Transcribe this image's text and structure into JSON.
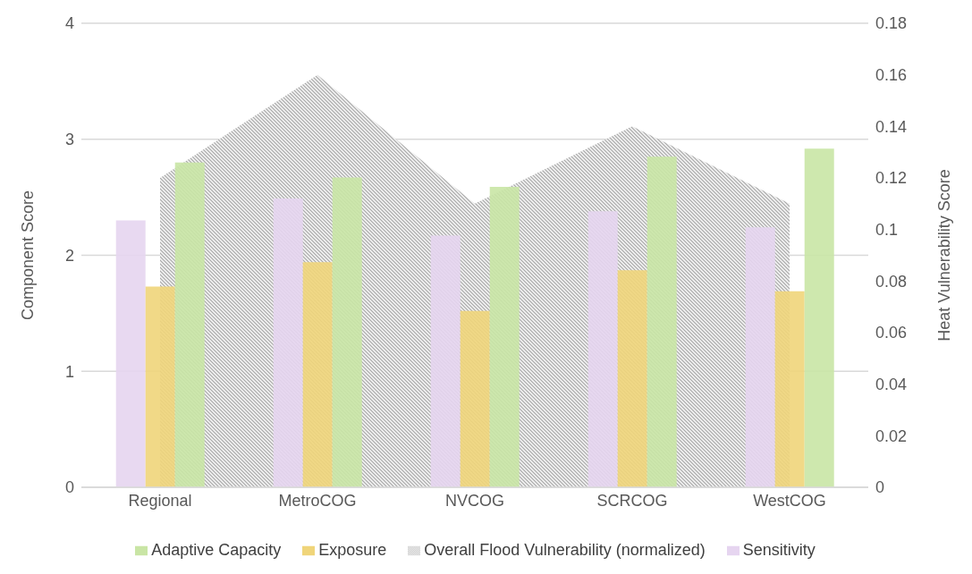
{
  "chart_data": {
    "type": "bar",
    "ylabel": "Component Score",
    "y2label": "Heat Vulnerability Score",
    "categories": [
      "Regional",
      "MetroCOG",
      "NVCOG",
      "SCRCOG",
      "WestCOG"
    ],
    "series": [
      {
        "name": "Overall Flood Vulnerability (normalized)",
        "type": "area",
        "axis": "y2",
        "color": "#a6a6a6",
        "values": [
          0.12,
          0.16,
          0.11,
          0.14,
          0.11
        ]
      },
      {
        "name": "Sensitivity",
        "color": "#e6d5f0",
        "values": [
          2.3,
          2.49,
          2.17,
          2.38,
          2.24
        ]
      },
      {
        "name": "Exposure",
        "color": "#f0d57a",
        "values": [
          1.73,
          1.94,
          1.52,
          1.87,
          1.69
        ]
      },
      {
        "name": "Adaptive Capacity",
        "color": "#c9e5a5",
        "values": [
          2.8,
          2.67,
          2.59,
          2.85,
          2.92
        ]
      }
    ],
    "ylim": [
      0,
      4
    ],
    "yticks": [
      0,
      1,
      2,
      3,
      4
    ],
    "y2lim": [
      0,
      0.18
    ],
    "y2ticks": [
      0,
      0.02,
      0.04,
      0.06,
      0.08,
      0.1,
      0.12,
      0.14,
      0.16,
      0.18
    ],
    "grid": "y",
    "legend": "bottom"
  }
}
